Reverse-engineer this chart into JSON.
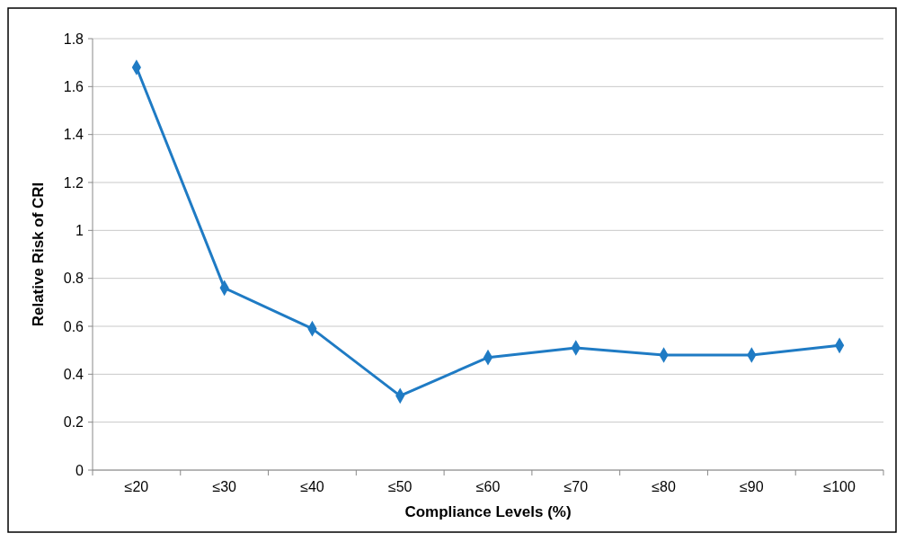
{
  "chart_data": {
    "type": "line",
    "xlabel": "Compliance Levels (%)",
    "ylabel": "Relative Risk of CRI",
    "categories": [
      "≤20",
      "≤30",
      "≤40",
      "≤50",
      "≤60",
      "≤70",
      "≤80",
      "≤90",
      "≤100"
    ],
    "series": [
      {
        "color": "#1f7bc4",
        "values": [
          1.68,
          0.76,
          0.59,
          0.31,
          0.47,
          0.51,
          0.48,
          0.48,
          0.52
        ]
      }
    ],
    "ylim": [
      0,
      1.8
    ],
    "yticks": [
      0,
      0.2,
      0.4,
      0.6,
      0.8,
      1,
      1.2,
      1.4,
      1.6,
      1.8
    ],
    "grid": "y",
    "marker": "diamond",
    "line_style": "solid"
  }
}
